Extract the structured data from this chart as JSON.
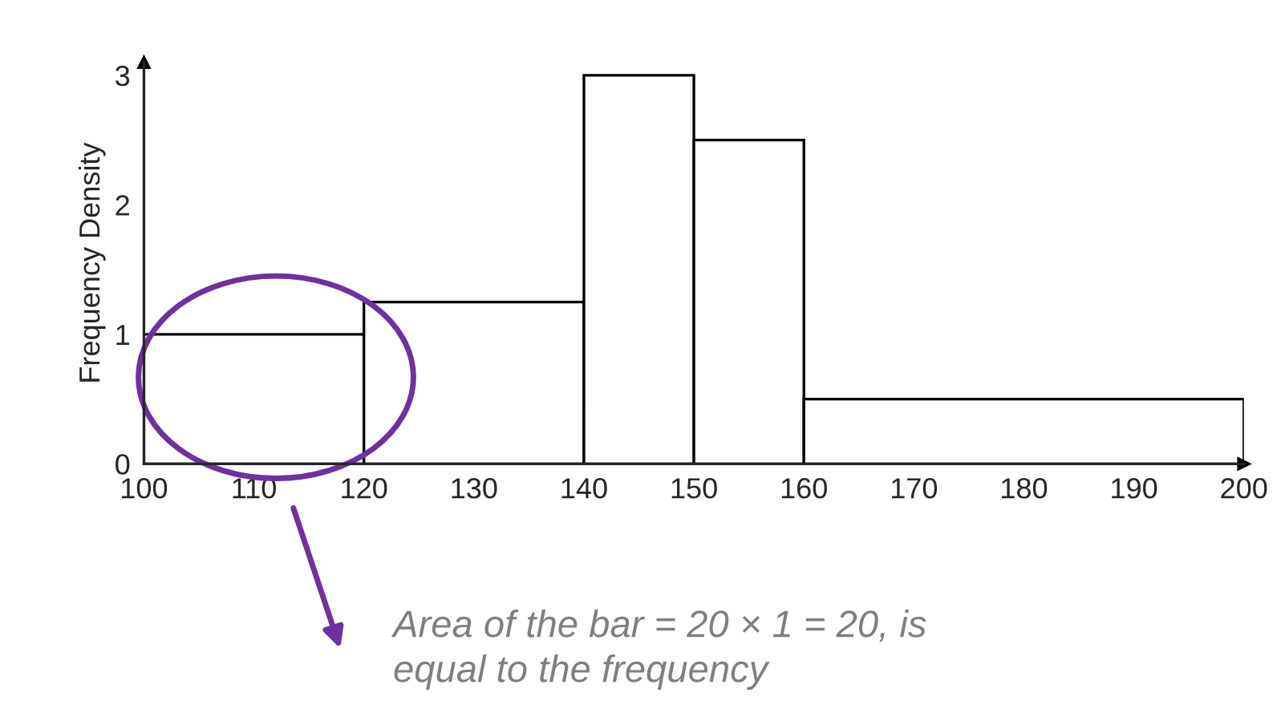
{
  "chart_data": {
    "type": "histogram",
    "ylabel": "Frequency Density",
    "bins": [
      100,
      120,
      140,
      150,
      160,
      200
    ],
    "values": [
      1,
      1.25,
      3,
      2.5,
      0.5
    ],
    "color": "#ffffff",
    "xlim": [
      100,
      200
    ],
    "xticks": [
      100,
      110,
      120,
      130,
      140,
      150,
      160,
      170,
      180,
      190,
      200
    ],
    "ylim": [
      0,
      3.1
    ],
    "yticks": [
      0,
      1,
      2,
      3
    ],
    "grid": false,
    "annotations": [
      "Area of the bar = 20 × 1 = 20, is\nequal to the frequency"
    ]
  }
}
